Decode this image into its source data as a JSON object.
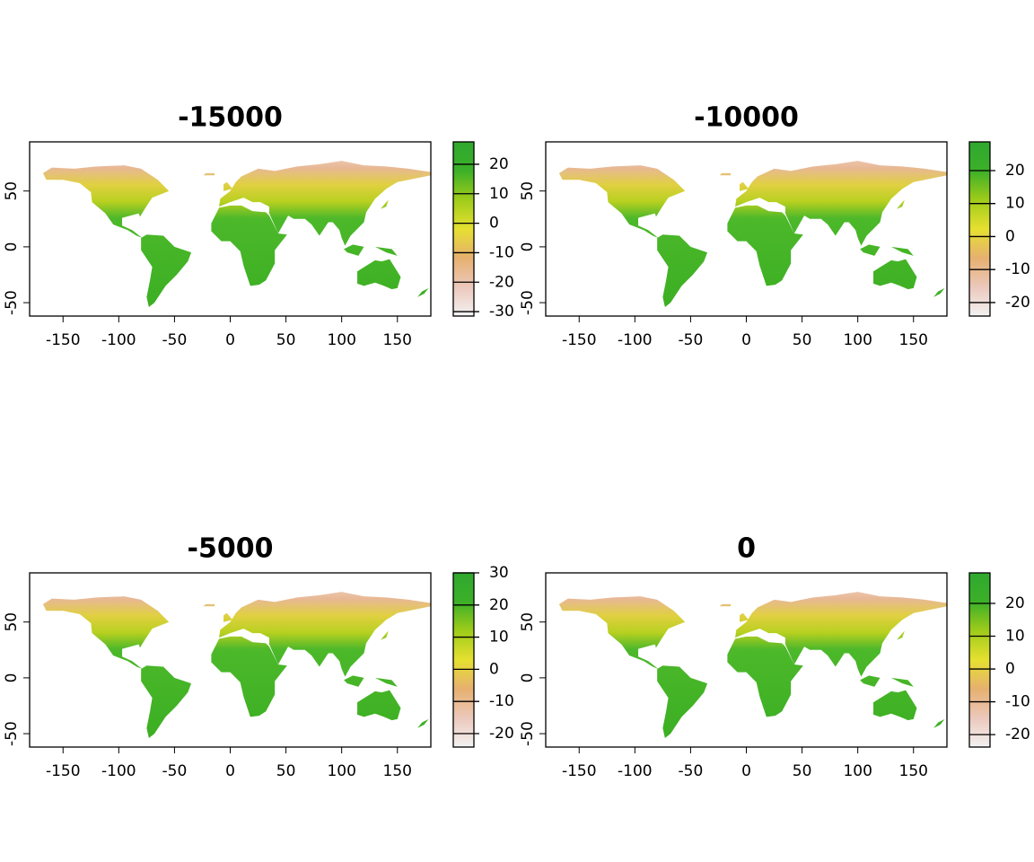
{
  "chart_data": [
    {
      "type": "raster",
      "title": "-15000",
      "xlim": [
        -180,
        180
      ],
      "ylim": [
        -62,
        94
      ],
      "xticks": [
        -150,
        -100,
        -50,
        0,
        50,
        100,
        150
      ],
      "yticks": [
        -50,
        0,
        50
      ],
      "colorbar": {
        "lim": [
          -31.5,
          27.6
        ],
        "ticks": [
          -30,
          -20,
          -10,
          0,
          10,
          20
        ],
        "colors": [
          "#f2f2f2",
          "#ecc8bc",
          "#e6b070",
          "#e6e030",
          "#a0cc1a",
          "#3cb028",
          "#2fa82f"
        ]
      }
    },
    {
      "type": "raster",
      "title": "-10000",
      "xlim": [
        -180,
        180
      ],
      "ylim": [
        -62,
        94
      ],
      "xticks": [
        -150,
        -100,
        -50,
        0,
        50,
        100,
        150
      ],
      "yticks": [
        -50,
        0,
        50
      ],
      "colorbar": {
        "lim": [
          -24.1,
          28.7
        ],
        "ticks": [
          -20,
          -10,
          0,
          10,
          20
        ],
        "colors": [
          "#f2f2f2",
          "#ecc8bc",
          "#e6b070",
          "#e6e030",
          "#a0cc1a",
          "#3cb028",
          "#2fa82f"
        ]
      }
    },
    {
      "type": "raster",
      "title": "-5000",
      "xlim": [
        -180,
        180
      ],
      "ylim": [
        -62,
        94
      ],
      "xticks": [
        -150,
        -100,
        -50,
        0,
        50,
        100,
        150
      ],
      "yticks": [
        -50,
        0,
        50
      ],
      "colorbar": {
        "lim": [
          -24.2,
          30
        ],
        "ticks": [
          -20,
          -10,
          0,
          10,
          20,
          30
        ],
        "colors": [
          "#f2f2f2",
          "#ecc8bc",
          "#e6b070",
          "#e6e030",
          "#a0cc1a",
          "#3cb028",
          "#2fa82f"
        ]
      }
    },
    {
      "type": "raster",
      "title": "0",
      "xlim": [
        -180,
        180
      ],
      "ylim": [
        -62,
        94
      ],
      "xticks": [
        -150,
        -100,
        -50,
        0,
        50,
        100,
        150
      ],
      "yticks": [
        -50,
        0,
        50
      ],
      "colorbar": {
        "lim": [
          -23.8,
          29.3
        ],
        "ticks": [
          -20,
          -10,
          0,
          10,
          20
        ],
        "colors": [
          "#f2f2f2",
          "#ecc8bc",
          "#e6b070",
          "#e6e030",
          "#a0cc1a",
          "#3cb028",
          "#2fa82f"
        ]
      }
    }
  ]
}
